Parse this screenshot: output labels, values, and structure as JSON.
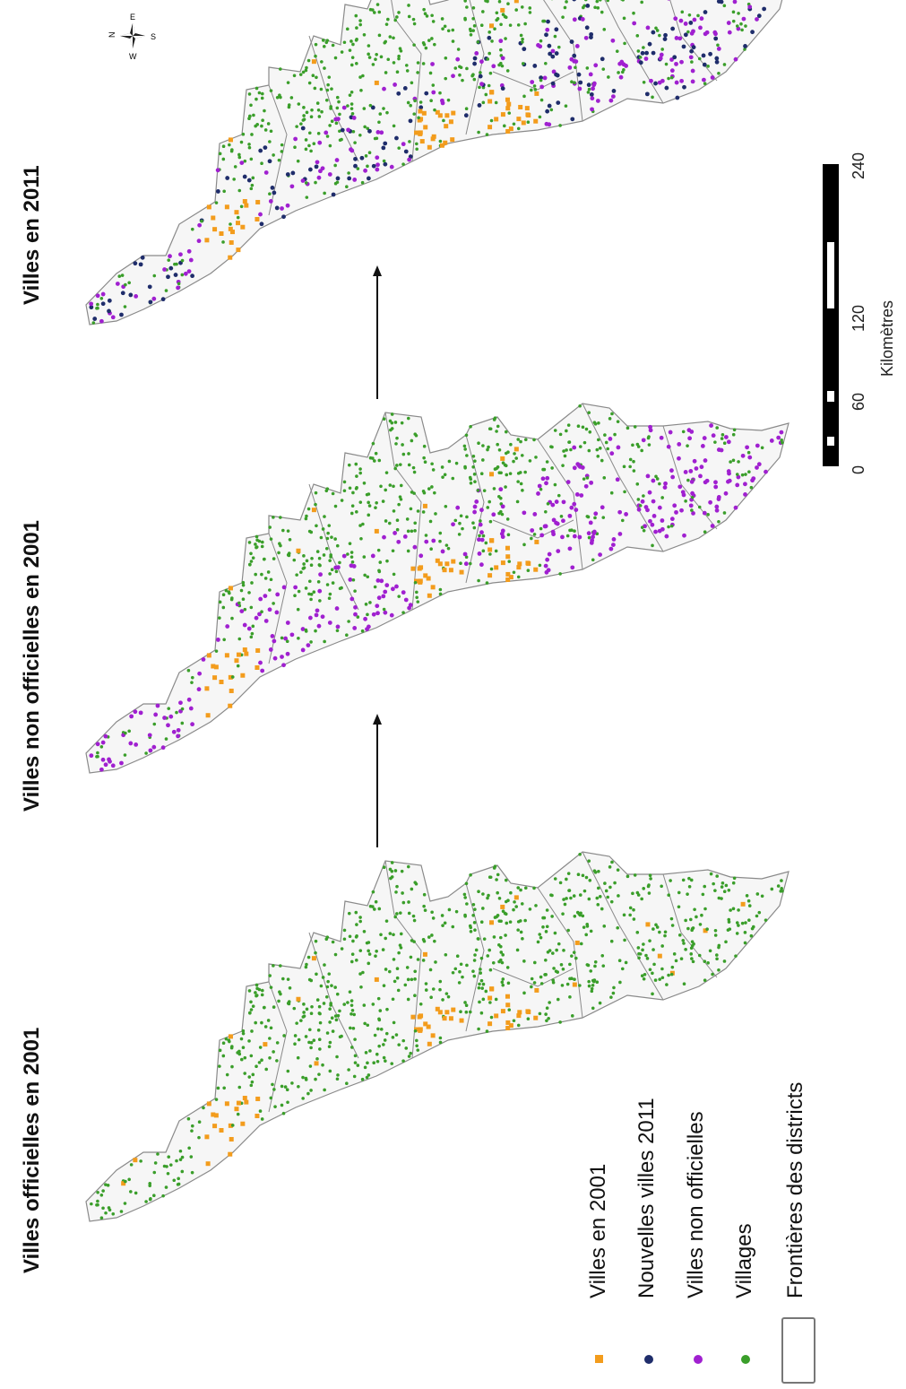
{
  "panels": [
    {
      "title": "Villes officielles  en 2001",
      "variant": "p2001"
    },
    {
      "title": "Villes non officielles en 2001",
      "variant": "pnon"
    },
    {
      "title": "Villes en 2011",
      "variant": "p2011"
    }
  ],
  "legend": {
    "items": [
      {
        "label": "Villes en 2001",
        "symbol": "square",
        "color": "#f39c1c"
      },
      {
        "label": "Nouvelles villes 2011",
        "symbol": "dot",
        "color": "#1f2d6b"
      },
      {
        "label": "Villes non officielles",
        "symbol": "dot",
        "color": "#a020d0"
      },
      {
        "label": "Villages",
        "symbol": "dot",
        "color": "#3a9e2a"
      },
      {
        "label": "Frontières des districts",
        "symbol": "box",
        "color": "#666666"
      }
    ]
  },
  "scale_bar": {
    "unit": "Kilomètres",
    "ticks": [
      "0",
      "60",
      "120",
      "240"
    ]
  },
  "compass": {
    "letters": [
      "N",
      "E",
      "S",
      "W"
    ]
  },
  "colors": {
    "town_2001": "#f39c1c",
    "new_town_2011": "#1f2d6b",
    "unofficial_town": "#a020d0",
    "village": "#3a9e2a",
    "district_border": "#8a8a8a",
    "land": "#e9e9e9"
  }
}
